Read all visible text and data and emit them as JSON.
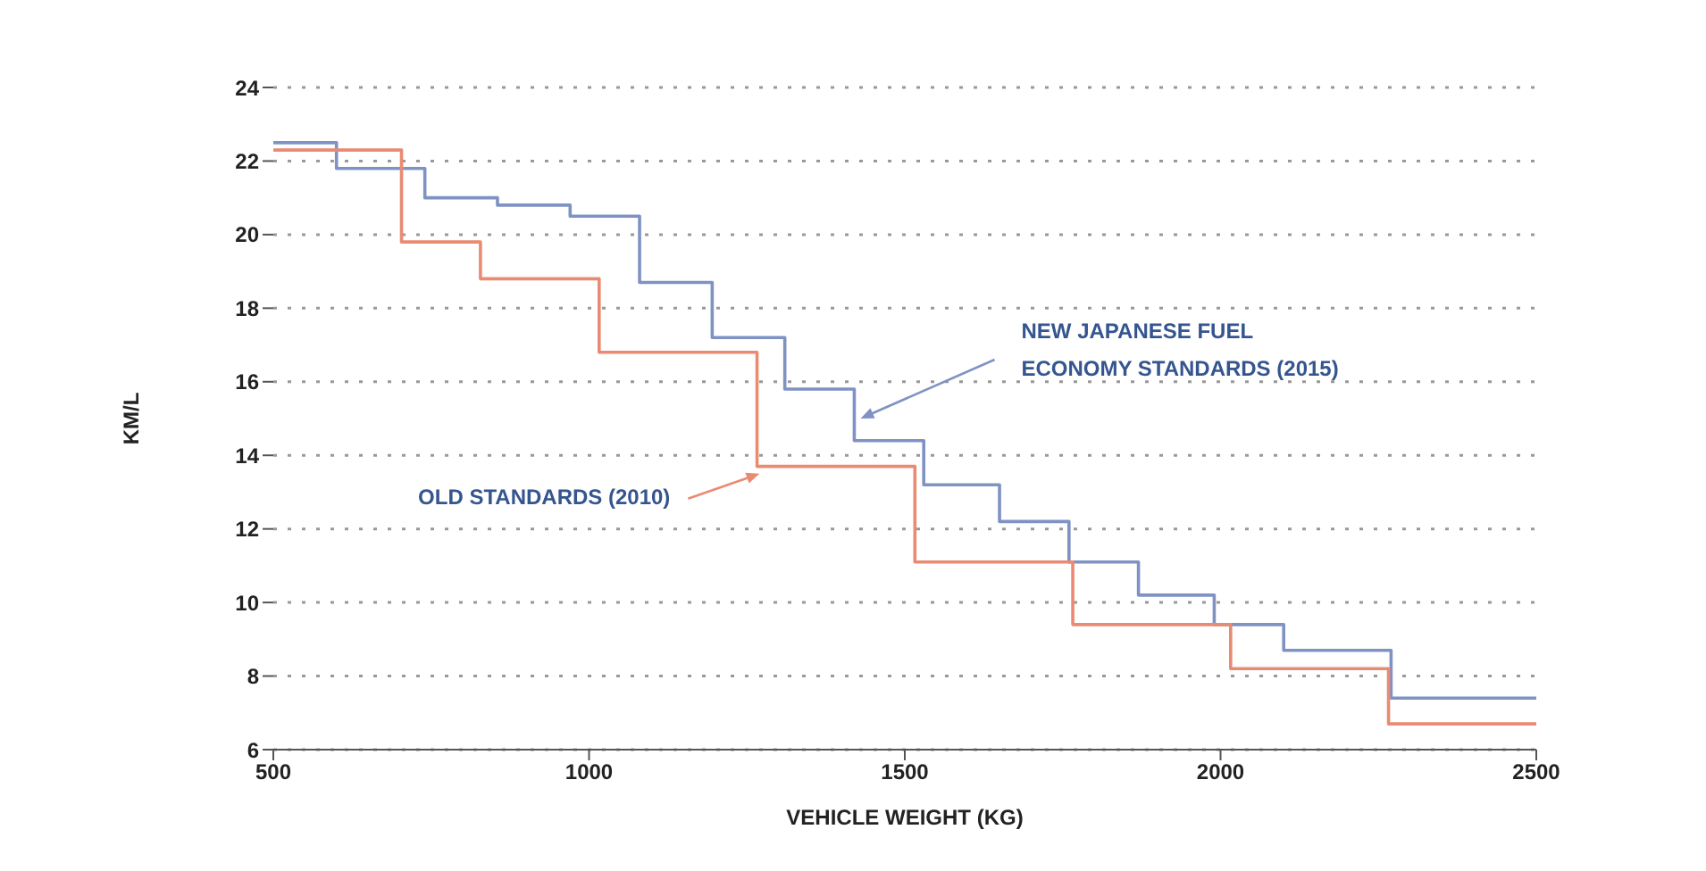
{
  "chart_data": {
    "type": "step",
    "xlabel": "VEHICLE WEIGHT (KG)",
    "ylabel": "KM/L",
    "xlim": [
      500,
      2500
    ],
    "xticks": [
      500,
      1000,
      1500,
      2000,
      2500
    ],
    "ylim": [
      6,
      24
    ],
    "yticks": [
      6,
      8,
      10,
      12,
      14,
      16,
      18,
      20,
      22,
      24
    ],
    "grid": "y",
    "legend": false,
    "marker": "none",
    "line_style": "solid",
    "series": [
      {
        "color": "#7f92c4",
        "x": [
          500,
          600,
          740,
          855,
          970,
          1080,
          1195,
          1310,
          1420,
          1530,
          1650,
          1760,
          1870,
          1990,
          2100,
          2270,
          2500
        ],
        "values": [
          22.5,
          21.8,
          21.0,
          20.8,
          20.5,
          18.7,
          17.2,
          15.8,
          14.4,
          13.2,
          12.2,
          11.1,
          10.2,
          9.4,
          8.7,
          7.4,
          7.4
        ]
      },
      {
        "color": "#e98b72",
        "x": [
          500,
          703,
          828,
          1016,
          1266,
          1516,
          1766,
          2016,
          2266,
          2500
        ],
        "values": [
          22.3,
          19.8,
          18.8,
          16.8,
          13.7,
          11.1,
          9.4,
          8.2,
          6.7,
          6.7
        ]
      }
    ],
    "annotations": [
      {
        "text": "NEW JAPANESE FUEL\nECONOMY STANDARDS (2015)",
        "x": 1430,
        "y": 15
      },
      {
        "text": "OLD STANDARDS (2010)",
        "x": 1270,
        "y": 13.5
      }
    ]
  }
}
